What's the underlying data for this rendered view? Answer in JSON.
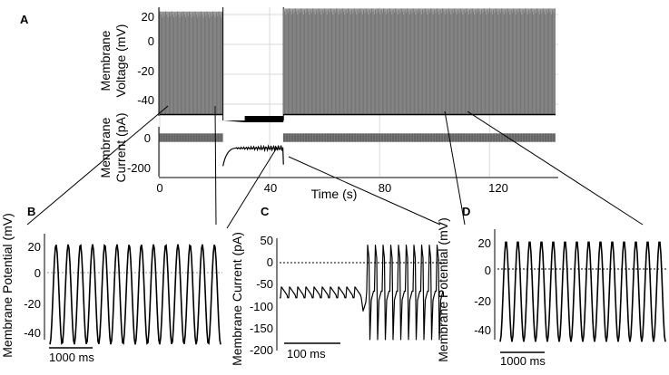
{
  "figure": {
    "panels": {
      "A": {
        "letter": "A",
        "voltage_ylabel": [
          "Membrane",
          "Voltage (mV)"
        ],
        "current_ylabel": [
          "Membrane",
          "Current (pA)"
        ],
        "xlabel": "Time (s)",
        "voltage_ticks": [
          "20",
          "0",
          "-20",
          "-40"
        ],
        "current_ticks": [
          "0",
          "-200"
        ],
        "x_ticks": [
          "0",
          "40",
          "80",
          "120"
        ]
      },
      "B": {
        "letter": "B",
        "ylabel": "Membrane Potential (mV)",
        "ticks": [
          "20",
          "0",
          "-20",
          "-40"
        ],
        "scalebar": "1000 ms"
      },
      "C": {
        "letter": "C",
        "ylabel": "Membrane Current (pA)",
        "ticks": [
          "50",
          "0",
          "-50",
          "-100",
          "-150",
          "-200"
        ],
        "scalebar": "100 ms"
      },
      "D": {
        "letter": "D",
        "ylabel": "Membrane Potential (mV)",
        "ticks": [
          "20",
          "0",
          "-20",
          "-40"
        ],
        "scalebar": "1000 ms"
      }
    },
    "colors": {
      "trace_main": "#6e6e6e",
      "trace_detail": "#000000",
      "grid": "#d8d8d8"
    }
  },
  "chart_data": [
    {
      "panel": "A-voltage",
      "type": "line",
      "x": "time (s)",
      "xlim": [
        0,
        145
      ],
      "ylim": [
        -50,
        27
      ],
      "segments": [
        {
          "t_start": 0,
          "t_end": 23,
          "state": "spontaneous firing",
          "peak_mV": 22,
          "trough_mV": -47
        },
        {
          "t_start": 23,
          "t_end": 45,
          "state": "voltage clamp",
          "command_mV": [
            -57,
            -55
          ]
        },
        {
          "t_start": 45,
          "t_end": 144,
          "state": "spontaneous firing",
          "peak_mV": 24,
          "trough_mV": -47
        }
      ]
    },
    {
      "panel": "A-current",
      "type": "line",
      "xlim": [
        0,
        145
      ],
      "ylim": [
        -220,
        30
      ],
      "segments": [
        {
          "t_start": 0,
          "t_end": 23,
          "state": "current-clamp baseline",
          "range_pA": [
            -10,
            10
          ]
        },
        {
          "t_start": 23,
          "t_end": 45,
          "state": "holding current",
          "mean_pA": -70,
          "noise_pA": 20
        },
        {
          "t_start": 45,
          "t_end": 144,
          "state": "current-clamp baseline",
          "range_pA": [
            -10,
            10
          ]
        }
      ]
    },
    {
      "panel": "B",
      "type": "line",
      "ylim": [
        -50,
        27
      ],
      "spike_count": 14,
      "peak_mV": 22,
      "trough_mV": -47
    },
    {
      "panel": "C",
      "type": "line",
      "ylim": [
        -200,
        55
      ],
      "regime1": {
        "events": 10,
        "baseline_pA": -80,
        "event_peak_pA": -55
      },
      "regime2": {
        "events": 10,
        "baseline_pA": -65,
        "upward_peak_pA": 40,
        "downward_peak_pA": -175
      }
    },
    {
      "panel": "D",
      "type": "line",
      "ylim": [
        -50,
        27
      ],
      "spike_count": 14,
      "peak_mV": 22,
      "trough_mV": -47
    }
  ]
}
